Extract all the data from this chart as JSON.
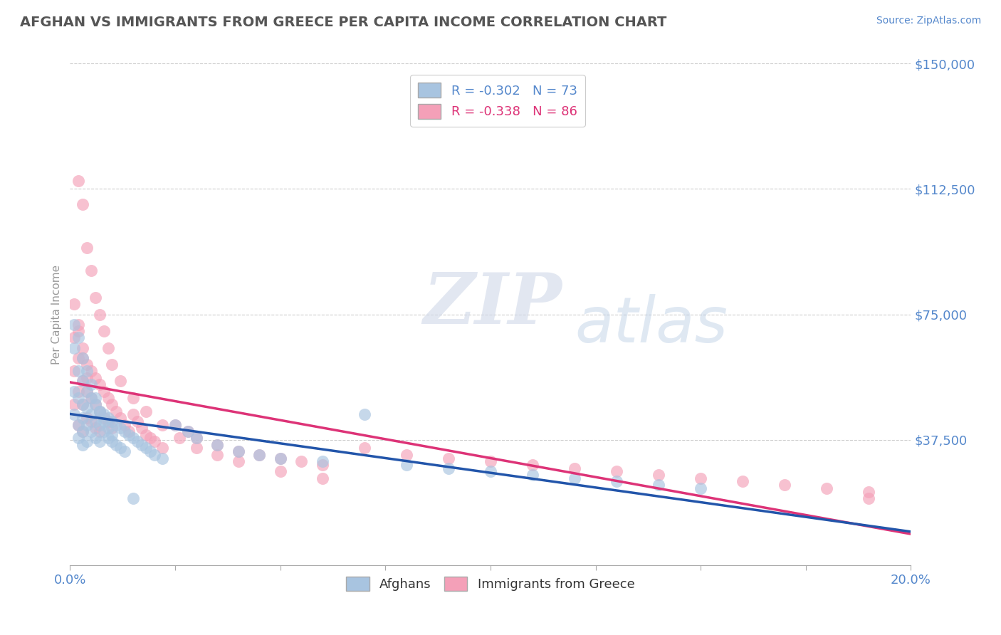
{
  "title": "AFGHAN VS IMMIGRANTS FROM GREECE PER CAPITA INCOME CORRELATION CHART",
  "source": "Source: ZipAtlas.com",
  "ylabel": "Per Capita Income",
  "xlim": [
    0.0,
    0.2
  ],
  "ylim": [
    0,
    150000
  ],
  "yticks": [
    0,
    37500,
    75000,
    112500,
    150000
  ],
  "ytick_labels": [
    "",
    "$37,500",
    "$75,000",
    "$112,500",
    "$150,000"
  ],
  "blue_color": "#a8c4e0",
  "pink_color": "#f4a0b8",
  "blue_line_color": "#2255aa",
  "pink_line_color": "#dd3377",
  "watermark_zip": "ZIP",
  "watermark_atlas": "atlas",
  "background_color": "#ffffff",
  "grid_color": "#cccccc",
  "axis_color": "#5588cc",
  "title_color": "#555555",
  "afghans_R": -0.302,
  "afghans_N": 73,
  "greece_R": -0.338,
  "greece_N": 86,
  "afghans_x": [
    0.001,
    0.001,
    0.001,
    0.002,
    0.002,
    0.002,
    0.002,
    0.003,
    0.003,
    0.003,
    0.003,
    0.003,
    0.004,
    0.004,
    0.004,
    0.004,
    0.005,
    0.005,
    0.005,
    0.006,
    0.006,
    0.006,
    0.007,
    0.007,
    0.007,
    0.008,
    0.008,
    0.009,
    0.009,
    0.01,
    0.01,
    0.011,
    0.011,
    0.012,
    0.012,
    0.013,
    0.013,
    0.014,
    0.015,
    0.016,
    0.017,
    0.018,
    0.019,
    0.02,
    0.022,
    0.025,
    0.028,
    0.03,
    0.035,
    0.04,
    0.045,
    0.05,
    0.06,
    0.07,
    0.08,
    0.09,
    0.1,
    0.11,
    0.12,
    0.13,
    0.14,
    0.15,
    0.001,
    0.002,
    0.003,
    0.004,
    0.005,
    0.006,
    0.007,
    0.008,
    0.009,
    0.01,
    0.015
  ],
  "afghans_y": [
    65000,
    52000,
    45000,
    58000,
    50000,
    42000,
    38000,
    55000,
    48000,
    44000,
    40000,
    36000,
    52000,
    47000,
    42000,
    37000,
    50000,
    45000,
    40000,
    48000,
    43000,
    38000,
    46000,
    42000,
    37000,
    45000,
    40000,
    44000,
    38000,
    43000,
    37000,
    42000,
    36000,
    41000,
    35000,
    40000,
    34000,
    39000,
    38000,
    37000,
    36000,
    35000,
    34000,
    33000,
    32000,
    42000,
    40000,
    38000,
    36000,
    34000,
    33000,
    32000,
    31000,
    45000,
    30000,
    29000,
    28000,
    27000,
    26000,
    25000,
    24000,
    23000,
    72000,
    68000,
    62000,
    58000,
    54000,
    50000,
    46000,
    43000,
    41000,
    39000,
    20000
  ],
  "greece_x": [
    0.001,
    0.001,
    0.001,
    0.002,
    0.002,
    0.002,
    0.002,
    0.003,
    0.003,
    0.003,
    0.003,
    0.004,
    0.004,
    0.004,
    0.005,
    0.005,
    0.005,
    0.006,
    0.006,
    0.006,
    0.007,
    0.007,
    0.007,
    0.008,
    0.008,
    0.009,
    0.009,
    0.01,
    0.01,
    0.011,
    0.012,
    0.013,
    0.014,
    0.015,
    0.016,
    0.017,
    0.018,
    0.019,
    0.02,
    0.022,
    0.025,
    0.028,
    0.03,
    0.035,
    0.04,
    0.045,
    0.05,
    0.055,
    0.06,
    0.07,
    0.08,
    0.09,
    0.1,
    0.11,
    0.12,
    0.13,
    0.14,
    0.15,
    0.16,
    0.17,
    0.18,
    0.19,
    0.002,
    0.003,
    0.004,
    0.005,
    0.006,
    0.007,
    0.008,
    0.009,
    0.01,
    0.012,
    0.015,
    0.018,
    0.022,
    0.026,
    0.03,
    0.035,
    0.04,
    0.05,
    0.06,
    0.001,
    0.002,
    0.003,
    0.004,
    0.19
  ],
  "greece_y": [
    68000,
    58000,
    48000,
    72000,
    62000,
    52000,
    42000,
    65000,
    55000,
    48000,
    40000,
    60000,
    52000,
    44000,
    58000,
    50000,
    43000,
    56000,
    48000,
    41000,
    54000,
    46000,
    40000,
    52000,
    44000,
    50000,
    43000,
    48000,
    41000,
    46000,
    44000,
    42000,
    40000,
    45000,
    43000,
    41000,
    39000,
    38000,
    37000,
    35000,
    42000,
    40000,
    38000,
    36000,
    34000,
    33000,
    32000,
    31000,
    30000,
    35000,
    33000,
    32000,
    31000,
    30000,
    29000,
    28000,
    27000,
    26000,
    25000,
    24000,
    23000,
    22000,
    115000,
    108000,
    95000,
    88000,
    80000,
    75000,
    70000,
    65000,
    60000,
    55000,
    50000,
    46000,
    42000,
    38000,
    35000,
    33000,
    31000,
    28000,
    26000,
    78000,
    70000,
    62000,
    56000,
    20000
  ]
}
